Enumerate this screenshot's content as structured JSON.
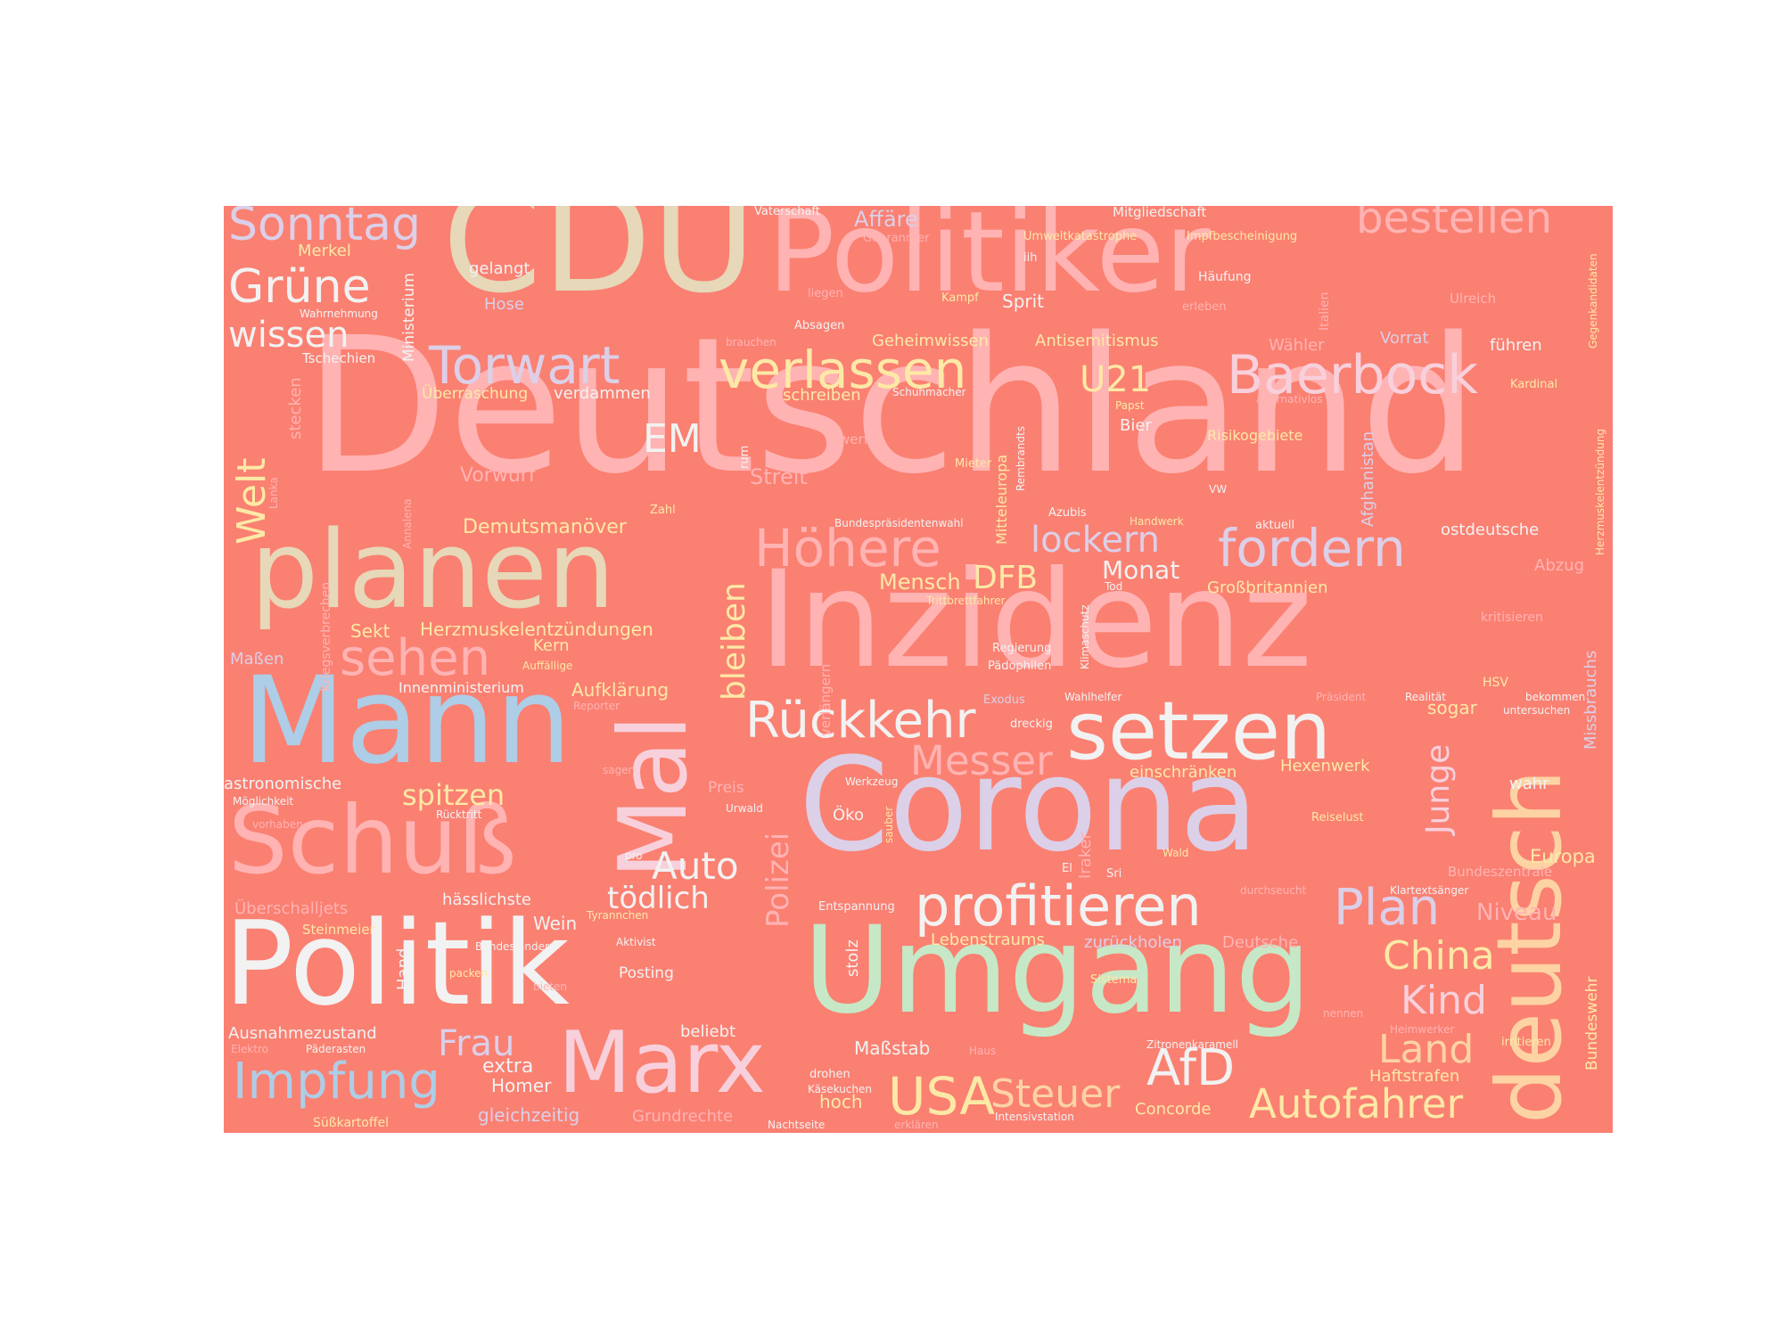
{
  "background": "#fa8072",
  "palette": {
    "pink": "#ffb3b3",
    "cream": "#e6d8b8",
    "lavender": "#dccfe8",
    "white": "#f2f2f2",
    "blue": "#aecde6",
    "mint": "#c6e8c6",
    "yellow": "#fde9a6",
    "lightpink": "#f8d0dc",
    "peach": "#fdd3a3",
    "faint": "#f5b8ae"
  },
  "words": [
    {
      "text": "Deutschland",
      "color": "pink"
    },
    {
      "text": "CDU",
      "color": "cream"
    },
    {
      "text": "Politiker",
      "color": "pink"
    },
    {
      "text": "Inzidenz",
      "color": "pink"
    },
    {
      "text": "Corona",
      "color": "lavender"
    },
    {
      "text": "Politik",
      "color": "white"
    },
    {
      "text": "Umgang",
      "color": "mint"
    },
    {
      "text": "Mann",
      "color": "blue"
    },
    {
      "text": "planen",
      "color": "cream"
    },
    {
      "text": "deutsch",
      "color": "peach"
    },
    {
      "text": "Mal",
      "color": "lightpink"
    },
    {
      "text": "Schuß",
      "color": "pink"
    },
    {
      "text": "Marx",
      "color": "lightpink"
    },
    {
      "text": "setzen",
      "color": "white"
    },
    {
      "text": "profitieren",
      "color": "white"
    },
    {
      "text": "Rückkehr",
      "color": "white"
    },
    {
      "text": "Baerbock",
      "color": "lightpink"
    },
    {
      "text": "verlassen",
      "color": "yellow"
    },
    {
      "text": "Torwart",
      "color": "lavender"
    },
    {
      "text": "fordern",
      "color": "lavender"
    },
    {
      "text": "Sonntag",
      "color": "lavender"
    },
    {
      "text": "bestellen",
      "color": "pink"
    },
    {
      "text": "Grüne",
      "color": "white"
    },
    {
      "text": "Höhere",
      "color": "pink"
    },
    {
      "text": "sehen",
      "color": "pink"
    },
    {
      "text": "Impfung",
      "color": "blue"
    },
    {
      "text": "Plan",
      "color": "lavender"
    },
    {
      "text": "Messer",
      "color": "pink"
    },
    {
      "text": "AfD",
      "color": "white"
    },
    {
      "text": "Autofahrer",
      "color": "yellow"
    },
    {
      "text": "USA",
      "color": "yellow"
    },
    {
      "text": "Steuer",
      "color": "peach"
    },
    {
      "text": "China",
      "color": "yellow"
    },
    {
      "text": "Land",
      "color": "peach"
    },
    {
      "text": "Kind",
      "color": "lightpink"
    },
    {
      "text": "Frau",
      "color": "lavender"
    },
    {
      "text": "Auto",
      "color": "white"
    },
    {
      "text": "tödlich",
      "color": "white"
    },
    {
      "text": "lockern",
      "color": "lavender"
    },
    {
      "text": "wissen",
      "color": "white"
    },
    {
      "text": "Welt",
      "color": "yellow"
    },
    {
      "text": "bleiben",
      "color": "yellow"
    },
    {
      "text": "Polizei",
      "color": "pink"
    },
    {
      "text": "Junge",
      "color": "lightpink"
    },
    {
      "text": "EM",
      "color": "white"
    },
    {
      "text": "U21",
      "color": "yellow"
    },
    {
      "text": "DFB",
      "color": "yellow"
    },
    {
      "text": "spitzen",
      "color": "yellow"
    },
    {
      "text": "Niveau",
      "color": "pink"
    },
    {
      "text": "Europa",
      "color": "yellow"
    },
    {
      "text": "Monat",
      "color": "white"
    },
    {
      "text": "Mensch",
      "color": "yellow"
    },
    {
      "text": "Vorwurf",
      "color": "pink"
    },
    {
      "text": "Streit",
      "color": "pink"
    },
    {
      "text": "Demutsmanöver",
      "color": "yellow"
    },
    {
      "text": "Herzmuskelentzündungen",
      "color": "yellow"
    },
    {
      "text": "Sekt",
      "color": "yellow"
    },
    {
      "text": "Kern",
      "color": "yellow"
    },
    {
      "text": "Aufklärung",
      "color": "yellow"
    },
    {
      "text": "Innenministerium",
      "color": "white"
    },
    {
      "text": "astronomische",
      "color": "white"
    },
    {
      "text": "Maßen",
      "color": "lavender"
    },
    {
      "text": "Ausnahmezustand",
      "color": "white"
    },
    {
      "text": "beliebt",
      "color": "white"
    },
    {
      "text": "extra",
      "color": "white"
    },
    {
      "text": "Homer",
      "color": "white"
    },
    {
      "text": "gleichzeitig",
      "color": "lavender"
    },
    {
      "text": "Grundrechte",
      "color": "pink"
    },
    {
      "text": "Maßstab",
      "color": "white"
    },
    {
      "text": "hoch",
      "color": "yellow"
    },
    {
      "text": "Concorde",
      "color": "yellow"
    },
    {
      "text": "Haftstrafen",
      "color": "yellow"
    },
    {
      "text": "Lebenstraums",
      "color": "yellow"
    },
    {
      "text": "zurückholen",
      "color": "lavender"
    },
    {
      "text": "Deutsche",
      "color": "pink"
    },
    {
      "text": "hässlichste",
      "color": "white"
    },
    {
      "text": "Wein",
      "color": "white"
    },
    {
      "text": "Überschalljets",
      "color": "pink"
    },
    {
      "text": "Steinmeier",
      "color": "yellow"
    },
    {
      "text": "Hand",
      "color": "white"
    },
    {
      "text": "Posting",
      "color": "white"
    },
    {
      "text": "Merkel",
      "color": "yellow"
    },
    {
      "text": "gelangt",
      "color": "white"
    },
    {
      "text": "Hose",
      "color": "lavender"
    },
    {
      "text": "Ministerium",
      "color": "white"
    },
    {
      "text": "Überraschung",
      "color": "yellow"
    },
    {
      "text": "verdammen",
      "color": "white"
    },
    {
      "text": "Geheimwissen",
      "color": "yellow"
    },
    {
      "text": "Antisemitismus",
      "color": "yellow"
    },
    {
      "text": "schreiben",
      "color": "yellow"
    },
    {
      "text": "Affäre",
      "color": "lavender"
    },
    {
      "text": "Sprit",
      "color": "white"
    },
    {
      "text": "Wähler",
      "color": "pink"
    },
    {
      "text": "Vorrat",
      "color": "lavender"
    },
    {
      "text": "führen",
      "color": "white"
    },
    {
      "text": "Bier",
      "color": "white"
    },
    {
      "text": "Risikogebiete",
      "color": "yellow"
    },
    {
      "text": "ostdeutsche",
      "color": "white"
    },
    {
      "text": "Großbritannien",
      "color": "yellow"
    },
    {
      "text": "Abzug",
      "color": "pink"
    },
    {
      "text": "einschränken",
      "color": "yellow"
    },
    {
      "text": "Hexenwerk",
      "color": "yellow"
    },
    {
      "text": "wahr",
      "color": "white"
    },
    {
      "text": "sogar",
      "color": "yellow"
    },
    {
      "text": "Missbrauchs",
      "color": "lavender"
    },
    {
      "text": "Afghanistan",
      "color": "lavender"
    },
    {
      "text": "Bundeswehr",
      "color": "yellow"
    },
    {
      "text": "Öko",
      "color": "white"
    },
    {
      "text": "Vaterschaft",
      "color": "white"
    },
    {
      "text": "Mitgliedschaft",
      "color": "white"
    },
    {
      "text": "Umweltkatastrophe",
      "color": "yellow"
    },
    {
      "text": "Impfbescheinigung",
      "color": "yellow"
    },
    {
      "text": "Gebrannter",
      "color": "pink"
    },
    {
      "text": "iih",
      "color": "white"
    },
    {
      "text": "Häufung",
      "color": "white"
    },
    {
      "text": "Italien",
      "color": "pink"
    },
    {
      "text": "Ulreich",
      "color": "pink"
    },
    {
      "text": "Gegenkandidaten",
      "color": "yellow"
    },
    {
      "text": "Wahrnehmung",
      "color": "white"
    },
    {
      "text": "liegen",
      "color": "pink"
    },
    {
      "text": "Kampf",
      "color": "yellow"
    },
    {
      "text": "erleben",
      "color": "pink"
    },
    {
      "text": "brauchen",
      "color": "pink"
    },
    {
      "text": "Absagen",
      "color": "white"
    },
    {
      "text": "Tschechien",
      "color": "white"
    },
    {
      "text": "stecken",
      "color": "pink"
    },
    {
      "text": "Schuhmacher",
      "color": "white"
    },
    {
      "text": "Papst",
      "color": "yellow"
    },
    {
      "text": "alternativlos",
      "color": "pink"
    },
    {
      "text": "Kardinal",
      "color": "yellow"
    },
    {
      "text": "Herzmuskelentzündung",
      "color": "yellow"
    },
    {
      "text": "werfen",
      "color": "pink"
    },
    {
      "text": "Mieter",
      "color": "yellow"
    },
    {
      "text": "Rembrandts",
      "color": "white"
    },
    {
      "text": "Mitteleuropa",
      "color": "yellow"
    },
    {
      "text": "rum",
      "color": "white"
    },
    {
      "text": "VW",
      "color": "white"
    },
    {
      "text": "Lanka",
      "color": "pink"
    },
    {
      "text": "Annalena",
      "color": "pink"
    },
    {
      "text": "Zahl",
      "color": "yellow"
    },
    {
      "text": "Bundespräsidentenwahl",
      "color": "white"
    },
    {
      "text": "Azubis",
      "color": "white"
    },
    {
      "text": "Handwerk",
      "color": "yellow"
    },
    {
      "text": "aktuell",
      "color": "white"
    },
    {
      "text": "Tod",
      "color": "white"
    },
    {
      "text": "Trittbrettfahrer",
      "color": "yellow"
    },
    {
      "text": "Klimaschutz",
      "color": "white"
    },
    {
      "text": "Regierung",
      "color": "white"
    },
    {
      "text": "Pädophilen",
      "color": "white"
    },
    {
      "text": "kritisieren",
      "color": "pink"
    },
    {
      "text": "Kriegsverbrechen",
      "color": "pink"
    },
    {
      "text": "verlängern",
      "color": "pink"
    },
    {
      "text": "Auffällige",
      "color": "yellow"
    },
    {
      "text": "Exodus",
      "color": "lavender"
    },
    {
      "text": "Wahlhelfer",
      "color": "white"
    },
    {
      "text": "Präsident",
      "color": "pink"
    },
    {
      "text": "Realität",
      "color": "white"
    },
    {
      "text": "HSV",
      "color": "yellow"
    },
    {
      "text": "bekommen",
      "color": "white"
    },
    {
      "text": "untersuchen",
      "color": "white"
    },
    {
      "text": "Reporter",
      "color": "pink"
    },
    {
      "text": "dreckig",
      "color": "white"
    },
    {
      "text": "sagen",
      "color": "pink"
    },
    {
      "text": "Möglichkeit",
      "color": "white"
    },
    {
      "text": "Rücktritt",
      "color": "white"
    },
    {
      "text": "Preis",
      "color": "pink"
    },
    {
      "text": "Urwald",
      "color": "white"
    },
    {
      "text": "Werkzeug",
      "color": "white"
    },
    {
      "text": "vorhaben",
      "color": "pink"
    },
    {
      "text": "pro",
      "color": "white"
    },
    {
      "text": "sauber",
      "color": "yellow"
    },
    {
      "text": "Iraker",
      "color": "pink"
    },
    {
      "text": "El",
      "color": "white"
    },
    {
      "text": "Sri",
      "color": "white"
    },
    {
      "text": "Wald",
      "color": "yellow"
    },
    {
      "text": "Reiselust",
      "color": "yellow"
    },
    {
      "text": "Bundeszentrale",
      "color": "pink"
    },
    {
      "text": "durchseucht",
      "color": "pink"
    },
    {
      "text": "Klartextsänger",
      "color": "white"
    },
    {
      "text": "Tyrannchen",
      "color": "yellow"
    },
    {
      "text": "Aktivist",
      "color": "white"
    },
    {
      "text": "Bundesländer",
      "color": "white"
    },
    {
      "text": "Entspannung",
      "color": "white"
    },
    {
      "text": "stolz",
      "color": "white"
    },
    {
      "text": "packen",
      "color": "yellow"
    },
    {
      "text": "bieten",
      "color": "pink"
    },
    {
      "text": "Sistema",
      "color": "yellow"
    },
    {
      "text": "nennen",
      "color": "pink"
    },
    {
      "text": "Heimwerker",
      "color": "pink"
    },
    {
      "text": "irritieren",
      "color": "yellow"
    },
    {
      "text": "Elektro",
      "color": "pink"
    },
    {
      "text": "Päderasten",
      "color": "white"
    },
    {
      "text": "Haus",
      "color": "pink"
    },
    {
      "text": "drohen",
      "color": "white"
    },
    {
      "text": "Käsekuchen",
      "color": "white"
    },
    {
      "text": "Zitronenkaramell",
      "color": "white"
    },
    {
      "text": "Süßkartoffel",
      "color": "yellow"
    },
    {
      "text": "Nachtseite",
      "color": "white"
    },
    {
      "text": "erklären",
      "color": "pink"
    },
    {
      "text": "Intensivstation",
      "color": "white"
    }
  ]
}
